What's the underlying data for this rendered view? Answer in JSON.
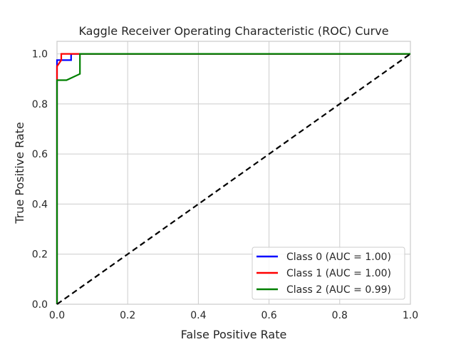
{
  "chart_data": {
    "type": "line",
    "title": "Kaggle Receiver Operating Characteristic (ROC) Curve",
    "xlabel": "False Positive Rate",
    "ylabel": "True Positive Rate",
    "xlim": [
      0.0,
      1.0
    ],
    "ylim": [
      0.0,
      1.05
    ],
    "xticks": [
      "0.0",
      "0.2",
      "0.4",
      "0.6",
      "0.8",
      "1.0"
    ],
    "yticks": [
      "0.0",
      "0.2",
      "0.4",
      "0.6",
      "0.8",
      "1.0"
    ],
    "grid": true,
    "legend_position": "lower-right",
    "series": [
      {
        "name": "Class 0 (AUC = 1.00)",
        "color": "#0000ff",
        "points": [
          [
            0,
            0
          ],
          [
            0,
            0.975
          ],
          [
            0.04,
            0.975
          ],
          [
            0.04,
            1.0
          ],
          [
            1.0,
            1.0
          ]
        ]
      },
      {
        "name": "Class 1 (AUC = 1.00)",
        "color": "#ff0000",
        "points": [
          [
            0,
            0
          ],
          [
            0,
            0.95
          ],
          [
            0.012,
            0.975
          ],
          [
            0.012,
            1.0
          ],
          [
            1.0,
            1.0
          ]
        ]
      },
      {
        "name": "Class 2 (AUC = 0.99)",
        "color": "#008000",
        "points": [
          [
            0,
            0
          ],
          [
            0,
            0.895
          ],
          [
            0.027,
            0.895
          ],
          [
            0.065,
            0.92
          ],
          [
            0.065,
            1.0
          ],
          [
            1.0,
            1.0
          ]
        ]
      }
    ],
    "reference_line": {
      "style": "dashed",
      "color": "#000000",
      "points": [
        [
          0,
          0
        ],
        [
          1,
          1
        ]
      ]
    }
  }
}
